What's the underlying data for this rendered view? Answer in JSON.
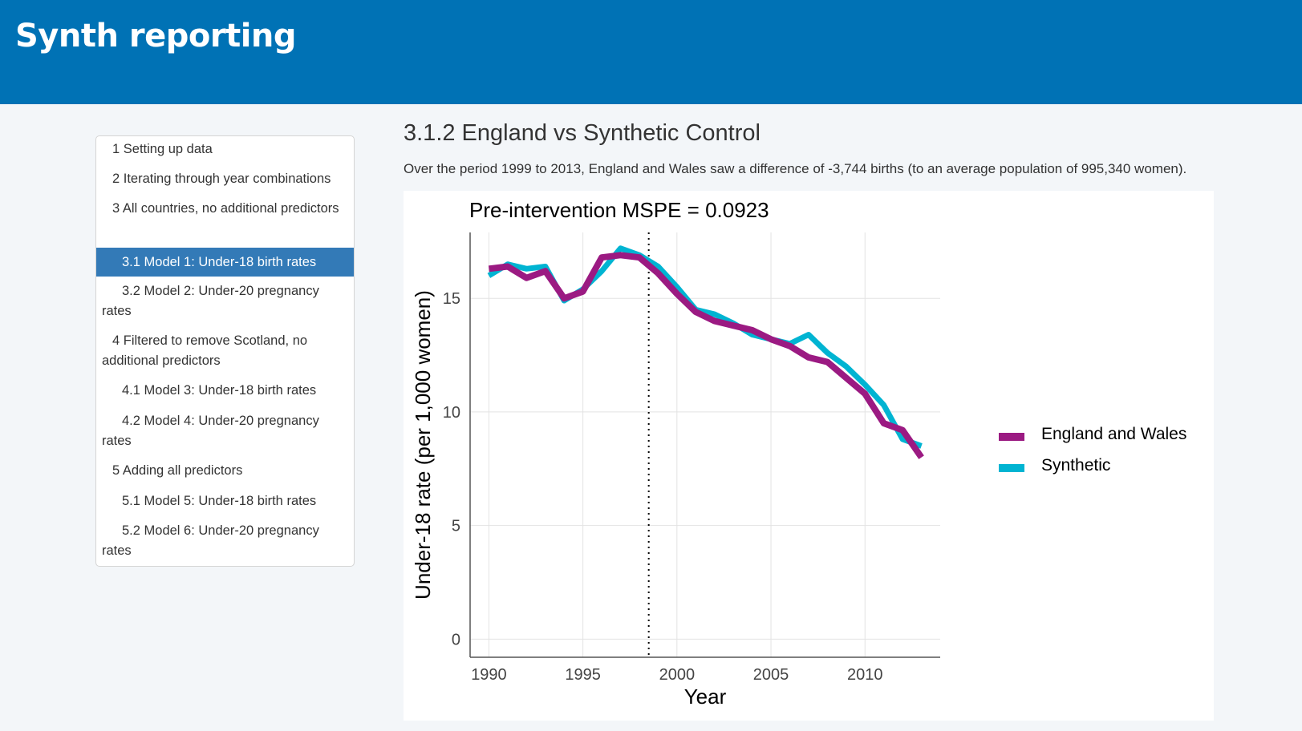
{
  "header": {
    "title": "Synth reporting"
  },
  "toc": {
    "items": [
      {
        "label": "1 Setting up data",
        "level": 1,
        "top": 0,
        "lines": 1,
        "active": false
      },
      {
        "label": "2 Iterating through year combinations",
        "level": 1,
        "active": false
      },
      {
        "label": "3 All countries, no additional predictors",
        "level": 1,
        "active": false
      },
      {
        "label": "3.1 Model 1: Under-18 birth rates",
        "level": 2,
        "active": true
      },
      {
        "label": "3.2 Model 2: Under-20 pregnancy rates",
        "level": 2,
        "active": false
      },
      {
        "label": "4 Filtered to remove Scotland, no additional predictors",
        "level": 1,
        "active": false
      },
      {
        "label": "4.1 Model 3: Under-18 birth rates",
        "level": 2,
        "active": false
      },
      {
        "label": "4.2 Model 4: Under-20 pregnancy rates",
        "level": 2,
        "active": false
      },
      {
        "label": "5 Adding all predictors",
        "level": 1,
        "active": false
      },
      {
        "label": "5.1 Model 5: Under-18 birth rates",
        "level": 2,
        "active": false
      },
      {
        "label": "5.2 Model 6: Under-20 pregnancy rates",
        "level": 2,
        "active": false
      }
    ]
  },
  "content": {
    "title": "3.1.2 England vs Synthetic Control",
    "description": "Over the period 1999 to 2013, England and Wales saw a difference of -3,744 births (to an average population of 995,340 women)."
  },
  "chart_data": {
    "type": "line",
    "title": "Pre-intervention MSPE = 0.0923",
    "xlabel": "Year",
    "ylabel": "Under-18 rate (per 1,000 women)",
    "xlim": [
      1989,
      2014
    ],
    "ylim": [
      -0.8,
      17.9
    ],
    "x_ticks": [
      1990,
      1995,
      2000,
      2005,
      2010
    ],
    "y_ticks": [
      0,
      5,
      10,
      15
    ],
    "grid": true,
    "legend_position": "right",
    "intervention_year": 1998.5,
    "x": [
      1990,
      1991,
      1992,
      1993,
      1994,
      1995,
      1996,
      1997,
      1998,
      1999,
      2000,
      2001,
      2002,
      2003,
      2004,
      2005,
      2006,
      2007,
      2008,
      2009,
      2010,
      2011,
      2012,
      2013
    ],
    "series": [
      {
        "name": "England and Wales",
        "color": "#9b1a82",
        "values": [
          16.3,
          16.4,
          15.9,
          16.2,
          15.0,
          15.3,
          16.8,
          16.9,
          16.8,
          16.1,
          15.2,
          14.4,
          14.0,
          13.8,
          13.6,
          13.2,
          12.9,
          12.4,
          12.2,
          11.5,
          10.8,
          9.5,
          9.2,
          8.0
        ]
      },
      {
        "name": "Synthetic",
        "color": "#00b4d2",
        "values": [
          16.0,
          16.5,
          16.3,
          16.4,
          14.9,
          15.4,
          16.2,
          17.2,
          16.9,
          16.4,
          15.5,
          14.5,
          14.3,
          13.9,
          13.4,
          13.2,
          13.0,
          13.4,
          12.6,
          12.0,
          11.2,
          10.3,
          8.8,
          8.5
        ]
      }
    ]
  }
}
